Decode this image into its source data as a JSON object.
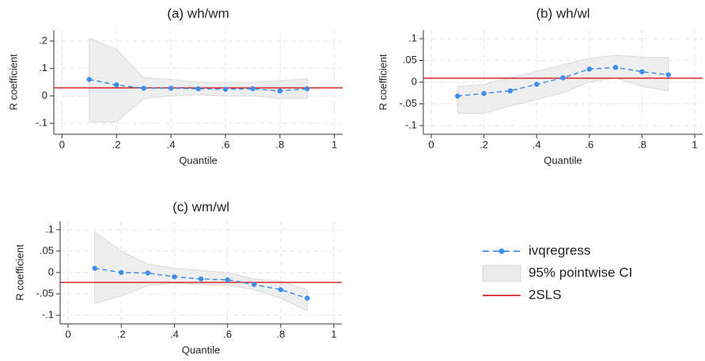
{
  "chart_data": [
    {
      "type": "line",
      "title": "(a) wh/wm",
      "xlabel": "Quantile",
      "ylabel": "R coefficient",
      "x": [
        0.1,
        0.2,
        0.3,
        0.4,
        0.5,
        0.6,
        0.7,
        0.8,
        0.9
      ],
      "values": [
        0.06,
        0.04,
        0.028,
        0.028,
        0.026,
        0.024,
        0.026,
        0.018,
        0.026
      ],
      "ci_upper": [
        0.21,
        0.17,
        0.066,
        0.06,
        0.05,
        0.05,
        0.05,
        0.055,
        0.063
      ],
      "ci_lower": [
        -0.095,
        -0.095,
        -0.01,
        0.0,
        0.005,
        0.0,
        0.0,
        -0.01,
        -0.01
      ],
      "reference": 0.029,
      "xlim": [
        -0.03,
        1.03
      ],
      "ylim": [
        -0.14,
        0.24
      ],
      "xticks": [
        0,
        {
          "value": 0.2,
          "label": ".2"
        },
        {
          "value": 0.4,
          "label": ".4"
        },
        {
          "value": 0.6,
          "label": ".6"
        },
        {
          "value": 0.8,
          "label": ".8"
        },
        1
      ],
      "yticks": [
        {
          "value": -0.1,
          "label": "-.1"
        },
        0,
        {
          "value": 0.1,
          "label": ".1"
        },
        {
          "value": 0.2,
          "label": ".2"
        }
      ],
      "grid": true
    },
    {
      "type": "line",
      "title": "(b) wh/wl",
      "xlabel": "Quantile",
      "ylabel": "R coefficient",
      "x": [
        0.1,
        0.2,
        0.3,
        0.4,
        0.5,
        0.6,
        0.7,
        0.8,
        0.9
      ],
      "values": [
        -0.032,
        -0.026,
        -0.02,
        -0.005,
        0.01,
        0.03,
        0.034,
        0.024,
        0.017
      ],
      "ci_upper": [
        -0.01,
        -0.005,
        0.01,
        0.025,
        0.04,
        0.055,
        0.062,
        0.058,
        0.057
      ],
      "ci_lower": [
        -0.072,
        -0.072,
        -0.055,
        -0.04,
        -0.025,
        0.0,
        0.01,
        -0.01,
        -0.02
      ],
      "reference": 0.009,
      "xlim": [
        -0.03,
        1.03
      ],
      "ylim": [
        -0.12,
        0.12
      ],
      "xticks": [
        0,
        {
          "value": 0.2,
          "label": ".2"
        },
        {
          "value": 0.4,
          "label": ".4"
        },
        {
          "value": 0.6,
          "label": ".6"
        },
        {
          "value": 0.8,
          "label": ".8"
        },
        1
      ],
      "yticks": [
        {
          "value": -0.1,
          "label": "-.1"
        },
        {
          "value": -0.05,
          "label": "-.05"
        },
        0,
        {
          "value": 0.05,
          "label": ".05"
        },
        {
          "value": 0.1,
          "label": ".1"
        }
      ],
      "grid": true
    },
    {
      "type": "line",
      "title": "(c) wm/wl",
      "xlabel": "Quantile",
      "ylabel": "R coefficient",
      "x": [
        0.1,
        0.2,
        0.3,
        0.4,
        0.5,
        0.6,
        0.7,
        0.8,
        0.9
      ],
      "values": [
        0.01,
        0.0,
        -0.001,
        -0.01,
        -0.015,
        -0.017,
        -0.028,
        -0.04,
        -0.06
      ],
      "ci_upper": [
        0.095,
        0.05,
        0.02,
        0.01,
        0.005,
        0.0,
        -0.015,
        -0.02,
        -0.04
      ],
      "ci_lower": [
        -0.072,
        -0.055,
        -0.03,
        -0.025,
        -0.028,
        -0.03,
        -0.04,
        -0.06,
        -0.09
      ],
      "reference": -0.023,
      "xlim": [
        -0.03,
        1.03
      ],
      "ylim": [
        -0.12,
        0.12
      ],
      "xticks": [
        0,
        {
          "value": 0.2,
          "label": ".2"
        },
        {
          "value": 0.4,
          "label": ".4"
        },
        {
          "value": 0.6,
          "label": ".6"
        },
        {
          "value": 0.8,
          "label": ".8"
        },
        1
      ],
      "yticks": [
        {
          "value": -0.1,
          "label": "-.1"
        },
        {
          "value": -0.05,
          "label": "-.05"
        },
        0,
        {
          "value": 0.05,
          "label": ".05"
        },
        {
          "value": 0.1,
          "label": ".1"
        }
      ],
      "grid": true
    }
  ],
  "legend": [
    {
      "name": "ivqregress",
      "color": "#3d8ee8"
    },
    {
      "name": "95% pointwise CI",
      "color": "#ebebeb"
    },
    {
      "name": "2SLS",
      "color": "#d62728"
    }
  ]
}
